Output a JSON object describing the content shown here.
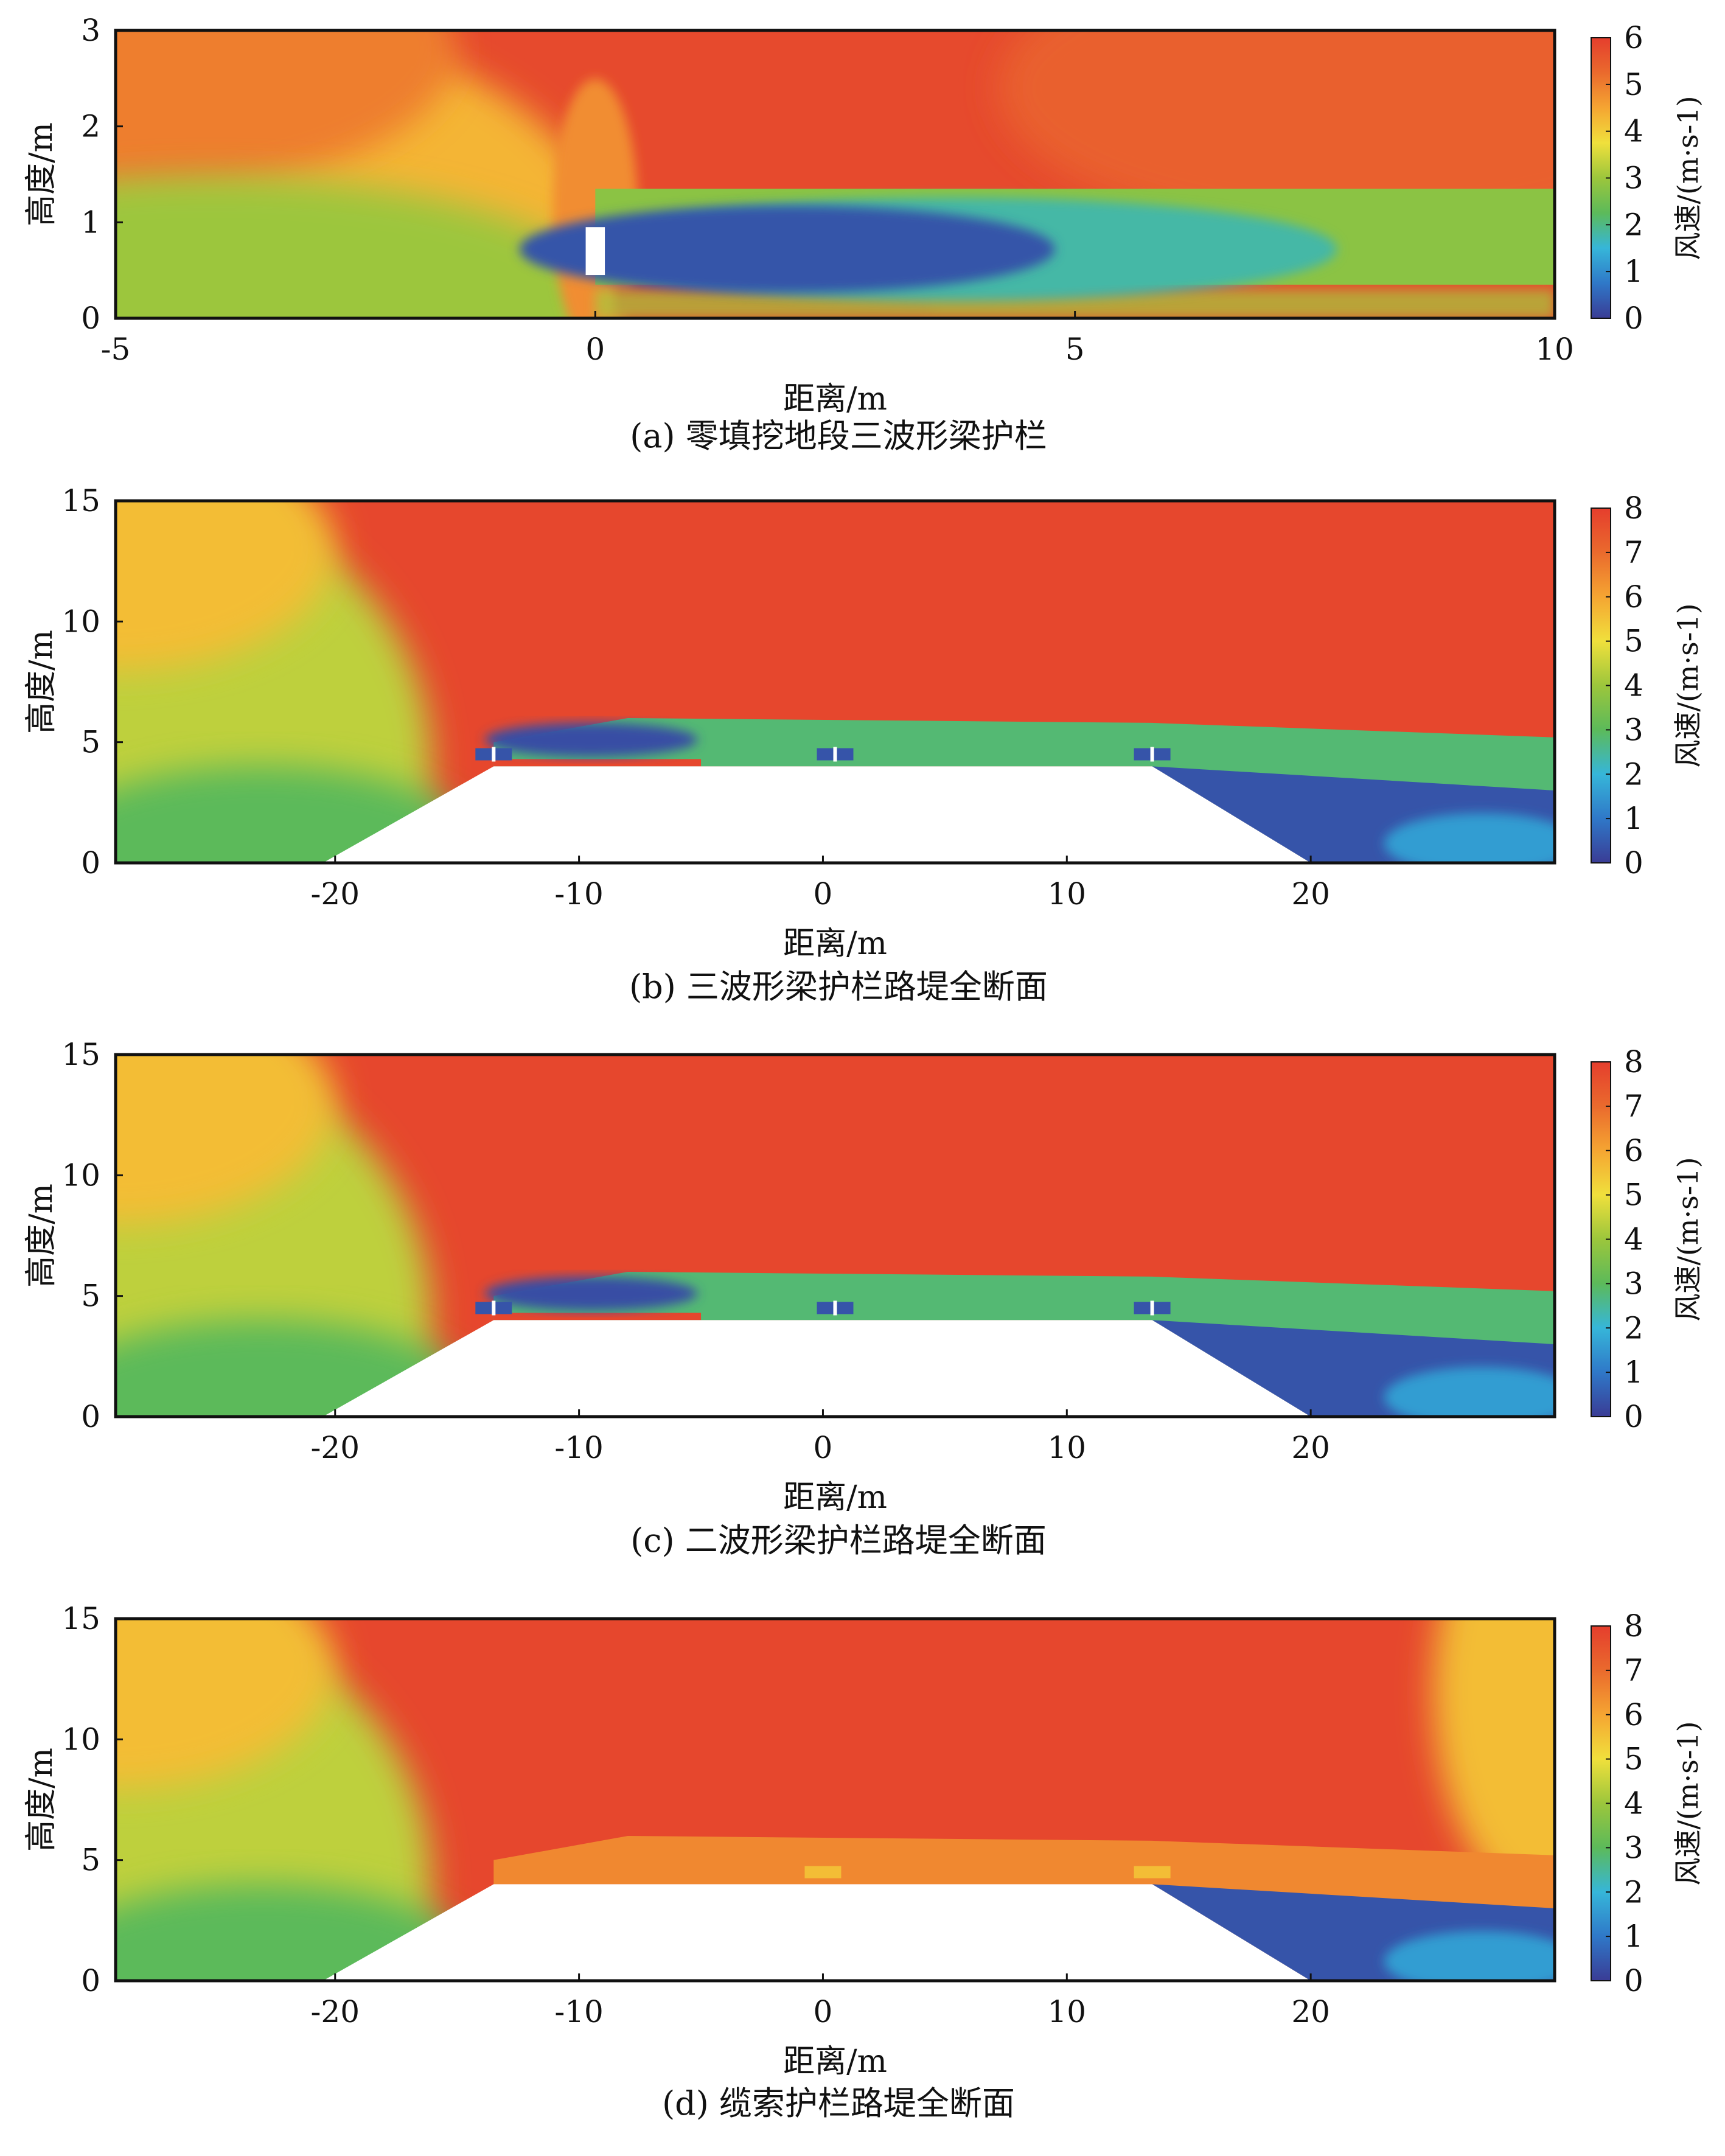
{
  "figure": {
    "captions": [
      "(a) 零填挖地段三波形梁护栏",
      "(b) 三波形梁护栏路堤全断面",
      "(c) 二波形梁护栏路堤全断面",
      "(d) 缆索护栏路堤全断面"
    ]
  },
  "colormap": [
    "#3a3c95",
    "#2f78c8",
    "#36b6d9",
    "#5cba5a",
    "#9cc63c",
    "#f0e03c",
    "#f5a532",
    "#ea6a2d",
    "#e53e2d"
  ],
  "chart_data": [
    {
      "type": "heatmap",
      "caption": "(a) 零填挖地段三波形梁护栏",
      "xlabel": "距离/m",
      "ylabel": "高度/m",
      "xlim": [
        -5,
        10
      ],
      "ylim": [
        0,
        3
      ],
      "xticks": [
        -5,
        0,
        5,
        10
      ],
      "yticks": [
        0,
        1,
        2,
        3
      ],
      "colorbar": {
        "title": "风速/(m·s-1)",
        "min": 0,
        "max": 6,
        "ticks": [
          0,
          1,
          2,
          3,
          4,
          5,
          6
        ]
      },
      "barriers": [
        {
          "x": [
            -0.1,
            0.1
          ],
          "y": [
            0.45,
            0.95
          ]
        }
      ]
    },
    {
      "type": "heatmap",
      "caption": "(b) 三波形梁护栏路堤全断面",
      "xlabel": "距离/m",
      "ylabel": "高度/m",
      "xlim": [
        -29,
        30
      ],
      "ylim": [
        0,
        15
      ],
      "xticks": [
        -20,
        -10,
        0,
        10,
        20
      ],
      "yticks": [
        0,
        5,
        10,
        15
      ],
      "colorbar": {
        "title": "风速/(m·s-1)",
        "min": 0,
        "max": 8,
        "ticks": [
          0,
          1,
          2,
          3,
          4,
          5,
          6,
          7,
          8
        ]
      },
      "embankment": [
        [
          -20.5,
          0
        ],
        [
          -13.5,
          4
        ],
        [
          13.5,
          4
        ],
        [
          20,
          0
        ]
      ],
      "barriers": [
        {
          "x": -13.5,
          "y": 4.5
        },
        {
          "x": 0.5,
          "y": 4.5
        },
        {
          "x": 13.5,
          "y": 4.5
        }
      ]
    },
    {
      "type": "heatmap",
      "caption": "(c) 二波形梁护栏路堤全断面",
      "xlabel": "距离/m",
      "ylabel": "高度/m",
      "xlim": [
        -29,
        30
      ],
      "ylim": [
        0,
        15
      ],
      "xticks": [
        -20,
        -10,
        0,
        10,
        20
      ],
      "yticks": [
        0,
        5,
        10,
        15
      ],
      "colorbar": {
        "title": "风速/(m·s-1)",
        "min": 0,
        "max": 8,
        "ticks": [
          0,
          1,
          2,
          3,
          4,
          5,
          6,
          7,
          8
        ]
      },
      "embankment": [
        [
          -20.5,
          0
        ],
        [
          -13.5,
          4
        ],
        [
          13.5,
          4
        ],
        [
          20,
          0
        ]
      ],
      "barriers": [
        {
          "x": -13.5,
          "y": 4.5
        },
        {
          "x": 0.5,
          "y": 4.5
        },
        {
          "x": 13.5,
          "y": 4.5
        }
      ]
    },
    {
      "type": "heatmap",
      "caption": "(d) 缆索护栏路堤全断面",
      "xlabel": "距离/m",
      "ylabel": "高度/m",
      "xlim": [
        -29,
        30
      ],
      "ylim": [
        0,
        15
      ],
      "xticks": [
        -20,
        -10,
        0,
        10,
        20
      ],
      "yticks": [
        0,
        5,
        10,
        15
      ],
      "colorbar": {
        "title": "风速/(m·s-1)",
        "min": 0,
        "max": 8,
        "ticks": [
          0,
          1,
          2,
          3,
          4,
          5,
          6,
          7,
          8
        ]
      },
      "embankment": [
        [
          -20.5,
          0
        ],
        [
          -13.5,
          4
        ],
        [
          13.5,
          4
        ],
        [
          20,
          0
        ]
      ],
      "barriers": [
        {
          "x": 0,
          "y": 4.5
        },
        {
          "x": 13.5,
          "y": 4.5
        }
      ]
    }
  ]
}
